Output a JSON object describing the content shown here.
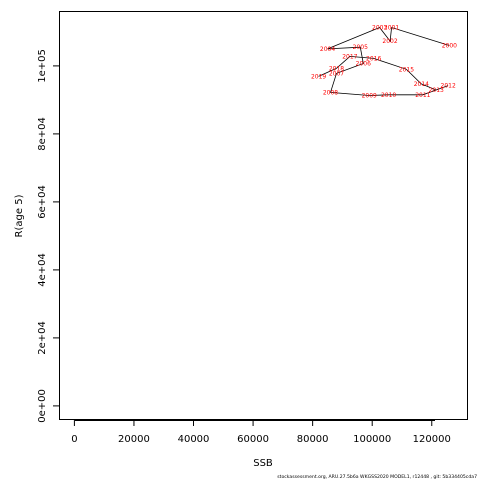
{
  "chart_data": {
    "type": "scatter",
    "xlabel": "SSB",
    "ylabel": "R(age 5)",
    "xlim": [
      -5000,
      132000
    ],
    "ylim": [
      -4000,
      116000
    ],
    "x_ticks": [
      0,
      20000,
      40000,
      60000,
      80000,
      100000,
      120000
    ],
    "x_tick_labels": [
      "0",
      "20000",
      "40000",
      "60000",
      "80000",
      "100000",
      "120000"
    ],
    "y_ticks": [
      0,
      20000,
      40000,
      60000,
      80000,
      100000
    ],
    "y_tick_labels": [
      "0e+00",
      "2e+04",
      "4e+04",
      "6e+04",
      "8e+04",
      "1e+05"
    ],
    "grid": false,
    "line_color": "#000000",
    "label_color": "#ff0000",
    "points": [
      {
        "year": "2000",
        "x": 125900,
        "y": 106000
      },
      {
        "year": "2001",
        "x": 106500,
        "y": 111300
      },
      {
        "year": "2002",
        "x": 106000,
        "y": 107300
      },
      {
        "year": "2003",
        "x": 102500,
        "y": 111300
      },
      {
        "year": "2004",
        "x": 85000,
        "y": 105000
      },
      {
        "year": "2005",
        "x": 96000,
        "y": 105500
      },
      {
        "year": "2006",
        "x": 97000,
        "y": 100700
      },
      {
        "year": "2007",
        "x": 88000,
        "y": 97800
      },
      {
        "year": "2008",
        "x": 86000,
        "y": 92200
      },
      {
        "year": "2009",
        "x": 99000,
        "y": 91300
      },
      {
        "year": "2010",
        "x": 105500,
        "y": 91500
      },
      {
        "year": "2011",
        "x": 117000,
        "y": 91500
      },
      {
        "year": "2012",
        "x": 125500,
        "y": 94200
      },
      {
        "year": "2013",
        "x": 121500,
        "y": 92900
      },
      {
        "year": "2014",
        "x": 116500,
        "y": 94700
      },
      {
        "year": "2015",
        "x": 111500,
        "y": 99000
      },
      {
        "year": "2016",
        "x": 100500,
        "y": 102200
      },
      {
        "year": "2017",
        "x": 92500,
        "y": 102800
      },
      {
        "year": "2018",
        "x": 88000,
        "y": 99300
      },
      {
        "year": "2019",
        "x": 82000,
        "y": 96900
      }
    ],
    "footer": "stockassessment.org,  ARU.27.5b6a  WKGSS2020  MODEL1,  r12448 ,  git: 5b334405cda7"
  }
}
